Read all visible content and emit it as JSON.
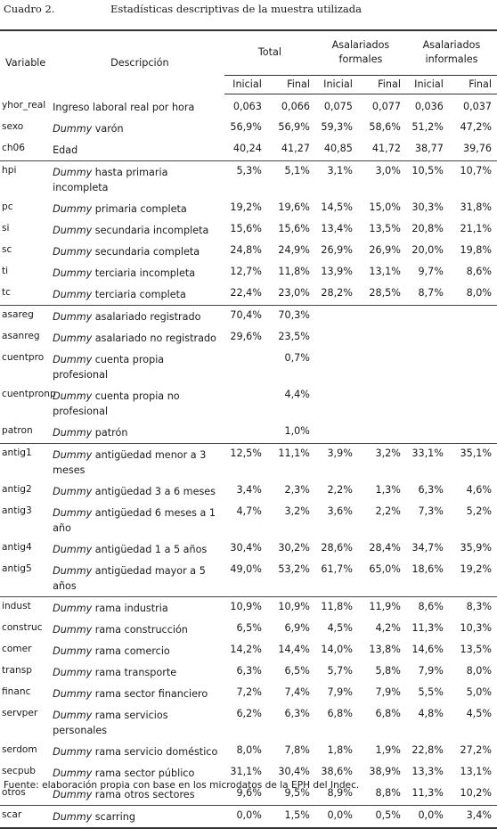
{
  "caption": {
    "label": "Cuadro 2.",
    "title": "Estadísticas descriptivas de la muestra utilizada"
  },
  "header": {
    "variable": "Variable",
    "descripcion": "Descripción",
    "groups": [
      {
        "line1": "Total",
        "line2": ""
      },
      {
        "line1": "Asalariados",
        "line2": "formales"
      },
      {
        "line1": "Asalariados",
        "line2": "informales"
      }
    ],
    "inicial": "Inicial",
    "final": "Final"
  },
  "rows": [
    {
      "var": "yhor_real",
      "dummy": "",
      "desc": "Ingreso laboral real por hora",
      "v": [
        "0,063",
        "0,066",
        "0,075",
        "0,077",
        "0,036",
        "0,037"
      ],
      "group_start": true
    },
    {
      "var": "sexo",
      "dummy": "Dummy",
      "desc": "varón",
      "v": [
        "56,9%",
        "56,9%",
        "59,3%",
        "58,6%",
        "51,2%",
        "47,2%"
      ]
    },
    {
      "var": "ch06",
      "dummy": "",
      "desc": "Edad",
      "v": [
        "40,24",
        "41,27",
        "40,85",
        "41,72",
        "38,77",
        "39,76"
      ]
    },
    {
      "var": "hpi",
      "dummy": "Dummy",
      "desc": "hasta primaria incompleta",
      "v": [
        "5,3%",
        "5,1%",
        "3,1%",
        "3,0%",
        "10,5%",
        "10,7%"
      ],
      "group_start": true
    },
    {
      "var": "pc",
      "dummy": "Dummy",
      "desc": "primaria completa",
      "v": [
        "19,2%",
        "19,6%",
        "14,5%",
        "15,0%",
        "30,3%",
        "31,8%"
      ]
    },
    {
      "var": "si",
      "dummy": "Dummy",
      "desc": "secundaria incompleta",
      "v": [
        "15,6%",
        "15,6%",
        "13,4%",
        "13,5%",
        "20,8%",
        "21,1%"
      ]
    },
    {
      "var": "sc",
      "dummy": "Dummy",
      "desc": "secundaria completa",
      "v": [
        "24,8%",
        "24,9%",
        "26,9%",
        "26,9%",
        "20,0%",
        "19,8%"
      ]
    },
    {
      "var": "ti",
      "dummy": "Dummy",
      "desc": "terciaria incompleta",
      "v": [
        "12,7%",
        "11,8%",
        "13,9%",
        "13,1%",
        "9,7%",
        "8,6%"
      ]
    },
    {
      "var": "tc",
      "dummy": "Dummy",
      "desc": "terciaria completa",
      "v": [
        "22,4%",
        "23,0%",
        "28,2%",
        "28,5%",
        "8,7%",
        "8,0%"
      ]
    },
    {
      "var": "asareg",
      "dummy": "Dummy",
      "desc": "asalariado registrado",
      "v": [
        "70,4%",
        "70,3%",
        "",
        "",
        "",
        ""
      ],
      "group_start": true
    },
    {
      "var": "asanreg",
      "dummy": "Dummy",
      "desc": "asalariado no registrado",
      "v": [
        "29,6%",
        "23,5%",
        "",
        "",
        "",
        ""
      ]
    },
    {
      "var": "cuentpro",
      "dummy": "Dummy",
      "desc": "cuenta propia profesional",
      "v": [
        "",
        "0,7%",
        "",
        "",
        "",
        ""
      ]
    },
    {
      "var": "cuentpronp",
      "dummy": "Dummy",
      "desc": "cuenta propia no profesional",
      "v": [
        "",
        "4,4%",
        "",
        "",
        "",
        ""
      ]
    },
    {
      "var": "patron",
      "dummy": "Dummy",
      "desc": "patrón",
      "v": [
        "",
        "1,0%",
        "",
        "",
        "",
        ""
      ]
    },
    {
      "var": "antig1",
      "dummy": "Dummy",
      "desc": "antigüedad menor a 3 meses",
      "v": [
        "12,5%",
        "11,1%",
        "3,9%",
        "3,2%",
        "33,1%",
        "35,1%"
      ],
      "group_start": true
    },
    {
      "var": "antig2",
      "dummy": "Dummy",
      "desc": "antigüedad 3 a 6 meses",
      "v": [
        "3,4%",
        "2,3%",
        "2,2%",
        "1,3%",
        "6,3%",
        "4,6%"
      ]
    },
    {
      "var": "antig3",
      "dummy": "Dummy",
      "desc": "antigüedad 6 meses a 1 año",
      "v": [
        "4,7%",
        "3,2%",
        "3,6%",
        "2,2%",
        "7,3%",
        "5,2%"
      ]
    },
    {
      "var": "antig4",
      "dummy": "Dummy",
      "desc": "antigüedad 1 a 5 años",
      "v": [
        "30,4%",
        "30,2%",
        "28,6%",
        "28,4%",
        "34,7%",
        "35,9%"
      ]
    },
    {
      "var": "antig5",
      "dummy": "Dummy",
      "desc": "antigüedad mayor a 5 años",
      "v": [
        "49,0%",
        "53,2%",
        "61,7%",
        "65,0%",
        "18,6%",
        "19,2%"
      ]
    },
    {
      "var": "indust",
      "dummy": "Dummy",
      "desc": "rama industria",
      "v": [
        "10,9%",
        "10,9%",
        "11,8%",
        "11,9%",
        "8,6%",
        "8,3%"
      ],
      "group_start": true
    },
    {
      "var": "construc",
      "dummy": "Dummy",
      "desc": "rama construcción",
      "v": [
        "6,5%",
        "6,9%",
        "4,5%",
        "4,2%",
        "11,3%",
        "10,3%"
      ]
    },
    {
      "var": "comer",
      "dummy": "Dummy",
      "desc": "rama comercio",
      "v": [
        "14,2%",
        "14,4%",
        "14,0%",
        "13,8%",
        "14,6%",
        "13,5%"
      ]
    },
    {
      "var": "transp",
      "dummy": "Dummy",
      "desc": "rama transporte",
      "v": [
        "6,3%",
        "6,5%",
        "5,7%",
        "5,8%",
        "7,9%",
        "8,0%"
      ]
    },
    {
      "var": "financ",
      "dummy": "Dummy",
      "desc": "rama sector financiero",
      "v": [
        "7,2%",
        "7,4%",
        "7,9%",
        "7,9%",
        "5,5%",
        "5,0%"
      ]
    },
    {
      "var": "servper",
      "dummy": "Dummy",
      "desc": "rama servicios personales",
      "v": [
        "6,2%",
        "6,3%",
        "6,8%",
        "6,8%",
        "4,8%",
        "4,5%"
      ]
    },
    {
      "var": "serdom",
      "dummy": "Dummy",
      "desc": "rama servicio doméstico",
      "v": [
        "8,0%",
        "7,8%",
        "1,8%",
        "1,9%",
        "22,8%",
        "27,2%"
      ]
    },
    {
      "var": "secpub",
      "dummy": "Dummy",
      "desc": "rama sector público",
      "v": [
        "31,1%",
        "30,4%",
        "38,6%",
        "38,9%",
        "13,3%",
        "13,1%"
      ]
    },
    {
      "var": "otros",
      "dummy": "Dummy",
      "desc": "rama otros sectores",
      "v": [
        "9,6%",
        "9,5%",
        "8,9%",
        "8,8%",
        "11,3%",
        "10,2%"
      ]
    },
    {
      "var": "scar",
      "dummy": "Dummy",
      "desc": "scarring",
      "v": [
        "0,0%",
        "1,5%",
        "0,0%",
        "0,5%",
        "0,0%",
        "3,4%"
      ],
      "group_start": true,
      "last": true
    }
  ],
  "footer": "Fuente: elaboración propia con base en los microdatos de la EPH del Indec."
}
